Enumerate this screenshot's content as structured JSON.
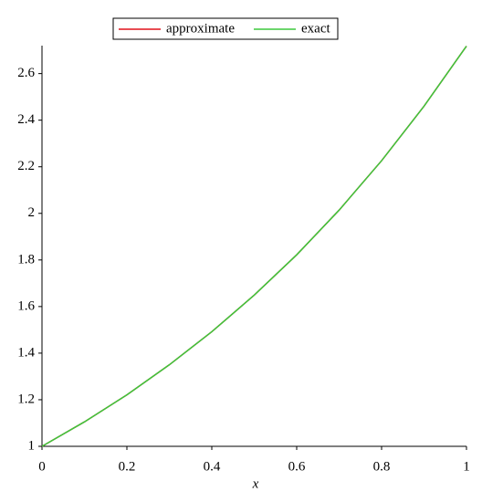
{
  "chart_data": {
    "type": "line",
    "x_label": "x",
    "x": [
      0,
      0.1,
      0.2,
      0.3,
      0.4,
      0.5,
      0.6,
      0.7,
      0.8,
      0.9,
      1
    ],
    "series": [
      {
        "name": "approximate",
        "color": "#e0101a",
        "values": [
          1,
          1.105,
          1.221,
          1.35,
          1.492,
          1.649,
          1.822,
          2.014,
          2.226,
          2.46,
          2.718
        ]
      },
      {
        "name": "exact",
        "color": "#3cc83c",
        "values": [
          1,
          1.105,
          1.221,
          1.35,
          1.492,
          1.649,
          1.822,
          2.014,
          2.226,
          2.46,
          2.718
        ]
      }
    ],
    "xlim": [
      0,
      1
    ],
    "xticks": [
      0,
      0.2,
      0.4,
      0.6,
      0.8,
      1
    ],
    "ylim": [
      1,
      2.72
    ],
    "yticks": [
      1,
      1.2,
      1.4,
      1.6,
      1.8,
      2,
      2.2,
      2.4,
      2.6
    ],
    "legend": "top"
  }
}
